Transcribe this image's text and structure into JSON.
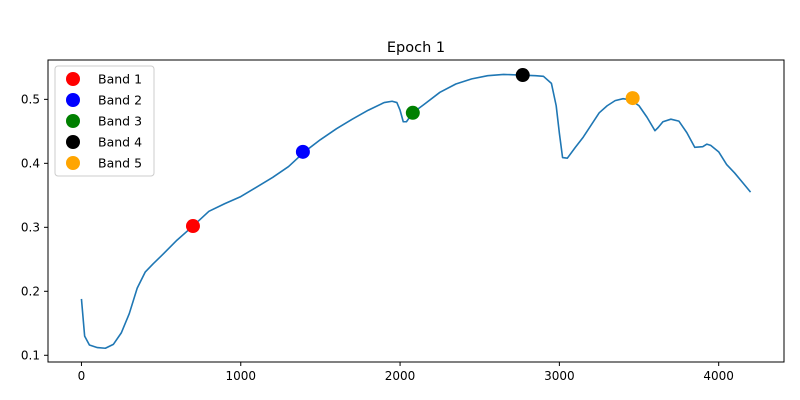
{
  "chart_data": {
    "type": "line",
    "title": "Epoch 1",
    "xlabel": "",
    "ylabel": "",
    "xlim": [
      -210,
      4410
    ],
    "ylim": [
      0.0895,
      0.5615
    ],
    "x_ticks": [
      0,
      1000,
      2000,
      3000,
      4000
    ],
    "y_ticks": [
      0.1,
      0.2,
      0.3,
      0.4,
      0.5
    ],
    "x_tick_labels": [
      "0",
      "1000",
      "2000",
      "3000",
      "4000"
    ],
    "y_tick_labels": [
      "0.1",
      "0.2",
      "0.3",
      "0.4",
      "0.5"
    ],
    "grid": false,
    "legend_position": "top-left",
    "line_color": "#1f77b4",
    "line": {
      "x": [
        0,
        20,
        50,
        100,
        150,
        200,
        250,
        300,
        350,
        400,
        450,
        500,
        600,
        700,
        800,
        900,
        1000,
        1100,
        1200,
        1300,
        1400,
        1500,
        1600,
        1700,
        1800,
        1900,
        1950,
        1980,
        2000,
        2020,
        2040,
        2080,
        2150,
        2250,
        2350,
        2450,
        2550,
        2650,
        2750,
        2850,
        2900,
        2950,
        2980,
        3000,
        3020,
        3050,
        3100,
        3150,
        3200,
        3250,
        3300,
        3350,
        3400,
        3450,
        3500,
        3550,
        3600,
        3620,
        3650,
        3700,
        3750,
        3800,
        3850,
        3900,
        3925,
        3950,
        4000,
        4050,
        4100,
        4150,
        4200
      ],
      "y": [
        0.188,
        0.13,
        0.116,
        0.112,
        0.111,
        0.117,
        0.135,
        0.165,
        0.205,
        0.23,
        0.243,
        0.255,
        0.28,
        0.302,
        0.325,
        0.337,
        0.348,
        0.363,
        0.378,
        0.395,
        0.418,
        0.437,
        0.454,
        0.469,
        0.483,
        0.495,
        0.497,
        0.495,
        0.483,
        0.465,
        0.465,
        0.479,
        0.492,
        0.511,
        0.524,
        0.532,
        0.537,
        0.539,
        0.538,
        0.537,
        0.536,
        0.525,
        0.49,
        0.447,
        0.409,
        0.408,
        0.425,
        0.441,
        0.46,
        0.479,
        0.49,
        0.498,
        0.501,
        0.499,
        0.49,
        0.472,
        0.451,
        0.456,
        0.465,
        0.469,
        0.466,
        0.448,
        0.425,
        0.426,
        0.43,
        0.428,
        0.418,
        0.398,
        0.385,
        0.37,
        0.355
      ]
    },
    "series": [
      {
        "name": "Band 1",
        "x": 700,
        "y": 0.302,
        "color": "#ff0000"
      },
      {
        "name": "Band 2",
        "x": 1390,
        "y": 0.418,
        "color": "#0000ff"
      },
      {
        "name": "Band 3",
        "x": 2080,
        "y": 0.479,
        "color": "#008000"
      },
      {
        "name": "Band 4",
        "x": 2770,
        "y": 0.538,
        "color": "#000000"
      },
      {
        "name": "Band 5",
        "x": 3460,
        "y": 0.502,
        "color": "#ffa500"
      }
    ]
  }
}
